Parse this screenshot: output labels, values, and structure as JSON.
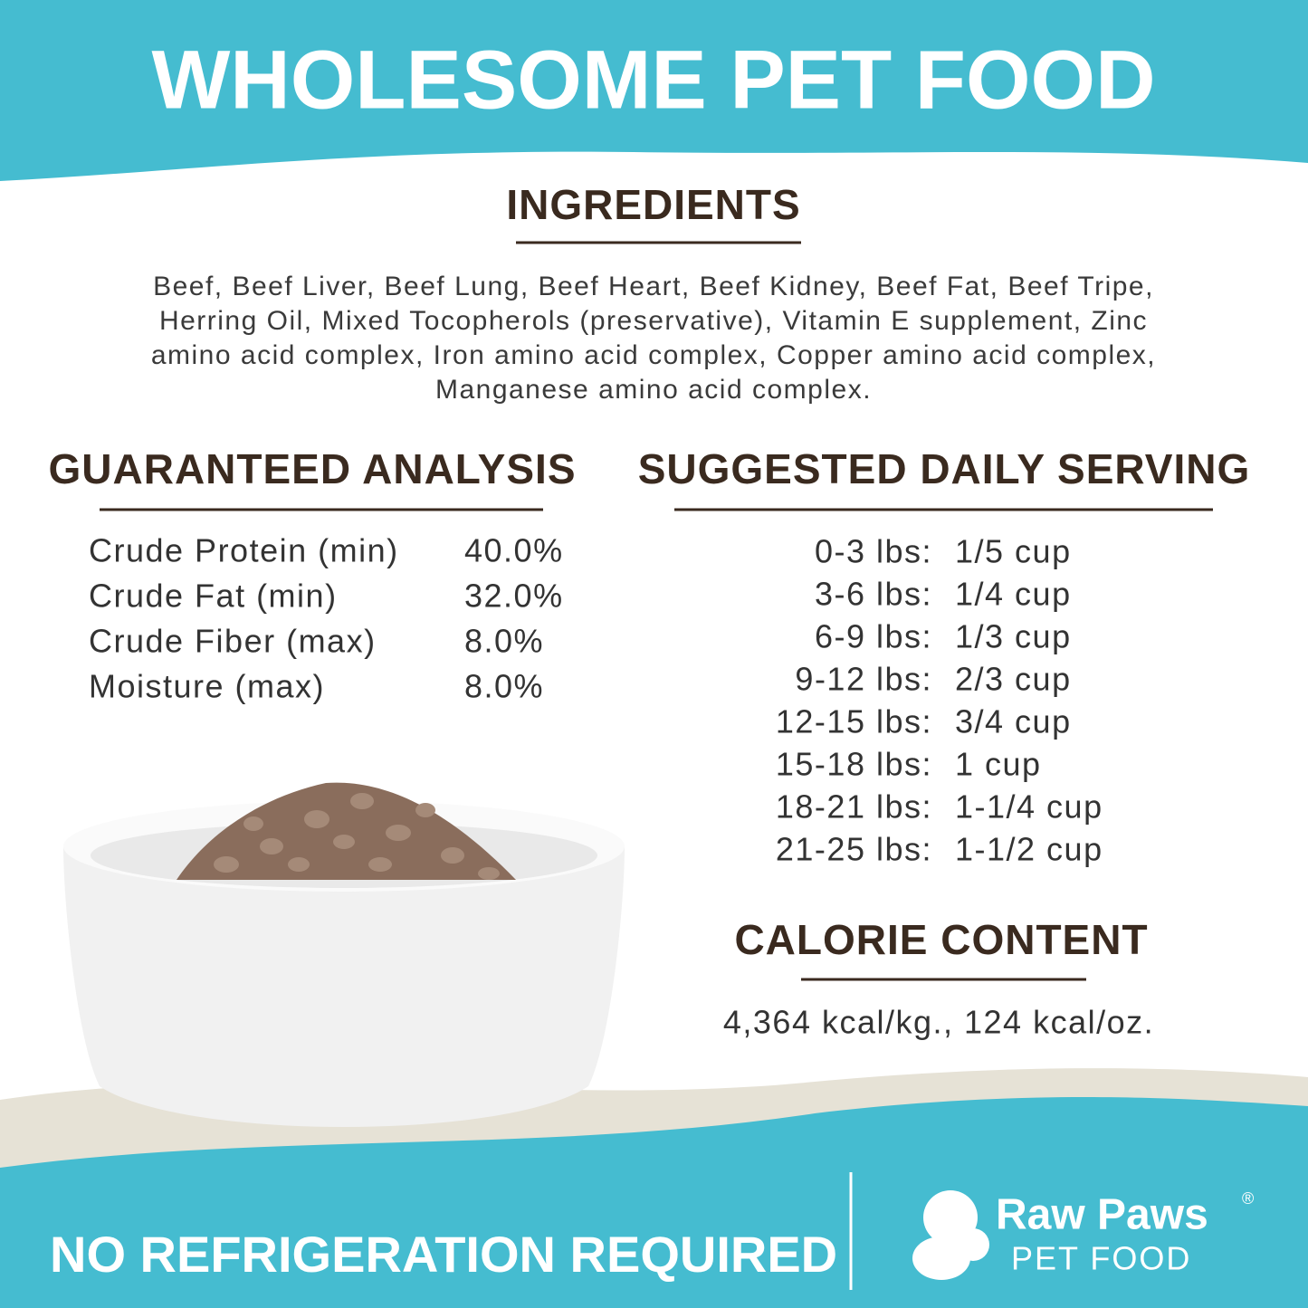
{
  "header": {
    "title": "WHOLESOME PET FOOD"
  },
  "ingredients": {
    "heading": "INGREDIENTS",
    "lines": [
      "Beef, Beef Liver, Beef Lung, Beef Heart, Beef Kidney, Beef Fat, Beef Tripe,",
      "Herring Oil, Mixed Tocopherols (preservative), Vitamin E supplement, Zinc",
      "amino acid complex, Iron amino acid complex, Copper amino acid complex,",
      "Manganese amino acid complex."
    ]
  },
  "analysis": {
    "heading": "GUARANTEED ANALYSIS",
    "rows": [
      [
        "Crude Protein (min)",
        "40.0%"
      ],
      [
        "Crude Fat (min)",
        "32.0%"
      ],
      [
        "Crude Fiber (max)",
        "8.0%"
      ],
      [
        "Moisture (max)",
        "8.0%"
      ]
    ]
  },
  "serving": {
    "heading": "SUGGESTED DAILY SERVING",
    "rows": [
      [
        "0-3 lbs:",
        "1/5 cup"
      ],
      [
        "3-6 lbs:",
        "1/4 cup"
      ],
      [
        "6-9 lbs:",
        "1/3 cup"
      ],
      [
        "9-12 lbs:",
        "2/3 cup"
      ],
      [
        "12-15 lbs:",
        "3/4 cup"
      ],
      [
        "15-18 lbs:",
        "1 cup"
      ],
      [
        "18-21 lbs:",
        "1-1/4 cup"
      ],
      [
        "21-25 lbs:",
        "1-1/2 cup"
      ]
    ]
  },
  "calories": {
    "heading": "CALORIE CONTENT",
    "text": "4,364 kcal/kg., 124 kcal/oz."
  },
  "footer": {
    "note": "NO REFRIGERATION REQUIRED",
    "brand": "Raw Paws",
    "registered": "®",
    "subbrand": "PET FOOD"
  }
}
